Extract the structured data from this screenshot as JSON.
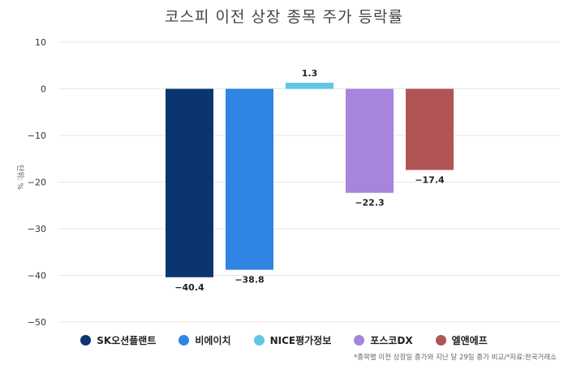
{
  "chart_data": {
    "type": "bar",
    "title": "코스피 이전 상장 종목 주가 등락률",
    "ylabel": "단위: %",
    "ylim": [
      -50,
      10
    ],
    "yticks": [
      10,
      0,
      -10,
      -20,
      -30,
      -40,
      -50
    ],
    "ytick_labels": [
      "10",
      "0",
      "−10",
      "−20",
      "−30",
      "−40",
      "−50"
    ],
    "grid": true,
    "legend_position": "bottom",
    "series": [
      {
        "name": "SK오션플랜트",
        "value": -40.4,
        "label": "−40.4",
        "color": "#0b3570"
      },
      {
        "name": "비에이치",
        "value": -38.8,
        "label": "−38.8",
        "color": "#2f84e4"
      },
      {
        "name": "NICE평가정보",
        "value": 1.3,
        "label": "1.3",
        "color": "#5cc7e6"
      },
      {
        "name": "포스코DX",
        "value": -22.3,
        "label": "−22.3",
        "color": "#a585de"
      },
      {
        "name": "엘앤에프",
        "value": -17.4,
        "label": "−17.4",
        "color": "#b05455"
      }
    ],
    "footnote": "*종목별 이전 상장일 종가와 지난 달 29일 종가 비교/*자료:한국거래소"
  }
}
